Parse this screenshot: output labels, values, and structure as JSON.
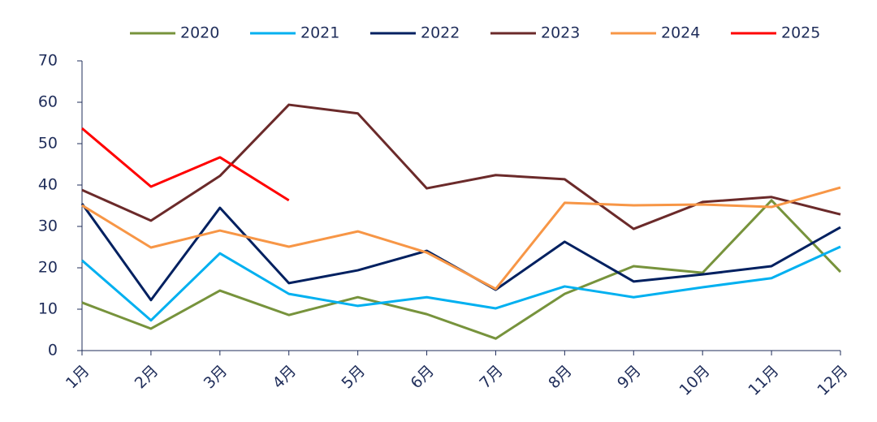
{
  "chart_data": {
    "type": "line",
    "categories": [
      "1月",
      "2月",
      "3月",
      "4月",
      "5月",
      "6月",
      "7月",
      "8月",
      "9月",
      "10月",
      "11月",
      "12月"
    ],
    "series": [
      {
        "name": "2020",
        "color": "#77933c",
        "values": [
          11.6,
          5.3,
          14.5,
          8.6,
          12.9,
          8.8,
          2.9,
          13.7,
          20.4,
          18.8,
          36.3,
          19.0
        ]
      },
      {
        "name": "2021",
        "color": "#00b0f0",
        "values": [
          21.8,
          7.3,
          23.5,
          13.7,
          10.8,
          12.9,
          10.2,
          15.5,
          12.9,
          15.3,
          17.5,
          25.1
        ]
      },
      {
        "name": "2022",
        "color": "#002060",
        "values": [
          35.5,
          12.2,
          34.5,
          16.3,
          19.4,
          24.1,
          14.7,
          26.3,
          16.7,
          18.4,
          20.4,
          29.8
        ]
      },
      {
        "name": "2023",
        "color": "#6b2a2a",
        "values": [
          38.8,
          31.4,
          42.2,
          59.4,
          57.3,
          39.2,
          42.4,
          41.4,
          29.4,
          35.9,
          37.1,
          32.9
        ]
      },
      {
        "name": "2024",
        "color": "#f79646",
        "values": [
          35.1,
          24.9,
          29.0,
          25.1,
          28.8,
          23.7,
          14.9,
          35.7,
          35.1,
          35.3,
          34.7,
          39.4
        ]
      },
      {
        "name": "2025",
        "color": "#ff0000",
        "values": [
          53.7,
          39.6,
          46.7,
          36.3,
          null,
          null,
          null,
          null,
          null,
          null,
          null,
          null
        ]
      }
    ],
    "ylim": [
      0,
      70
    ],
    "yticks": [
      0,
      10,
      20,
      30,
      40,
      50,
      60,
      70
    ],
    "legend": "top"
  }
}
